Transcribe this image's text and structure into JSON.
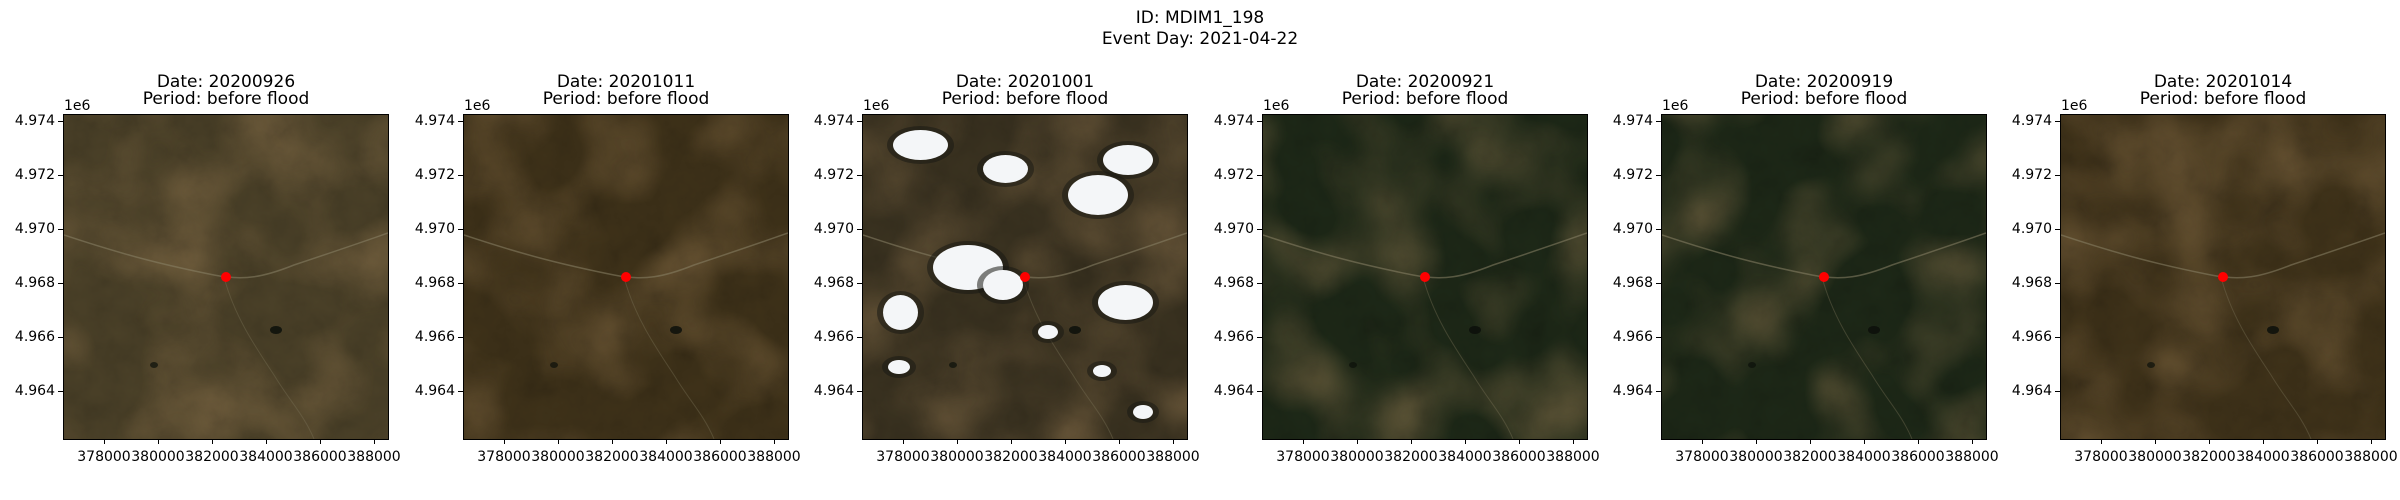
{
  "figure": {
    "id_line": "ID: MDIM1_198",
    "event_line": "Event Day: 2021-04-22"
  },
  "axes": {
    "offset_text": "1e6",
    "y_ticks": [
      "4.974",
      "4.972",
      "4.970",
      "4.968",
      "4.966",
      "4.964"
    ],
    "x_ticks": [
      "378000",
      "380000",
      "382000",
      "384000",
      "386000",
      "388000"
    ]
  },
  "panels": [
    {
      "date": "Date: 20200926",
      "period": "Period: before flood",
      "style": "autumn-muted"
    },
    {
      "date": "Date: 20201011",
      "period": "Period: before flood",
      "style": "autumn-dark"
    },
    {
      "date": "Date: 20201001",
      "period": "Period: before flood",
      "style": "cloudy"
    },
    {
      "date": "Date: 20200921",
      "period": "Period: before flood",
      "style": "green-dark"
    },
    {
      "date": "Date: 20200919",
      "period": "Period: before flood",
      "style": "green-dark"
    },
    {
      "date": "Date: 20201014",
      "period": "Period: before flood",
      "style": "autumn-dark"
    }
  ],
  "colors": {
    "marker": "#ff0000",
    "autumn_base": "#4a3a22",
    "green_base": "#1f2a1a"
  }
}
